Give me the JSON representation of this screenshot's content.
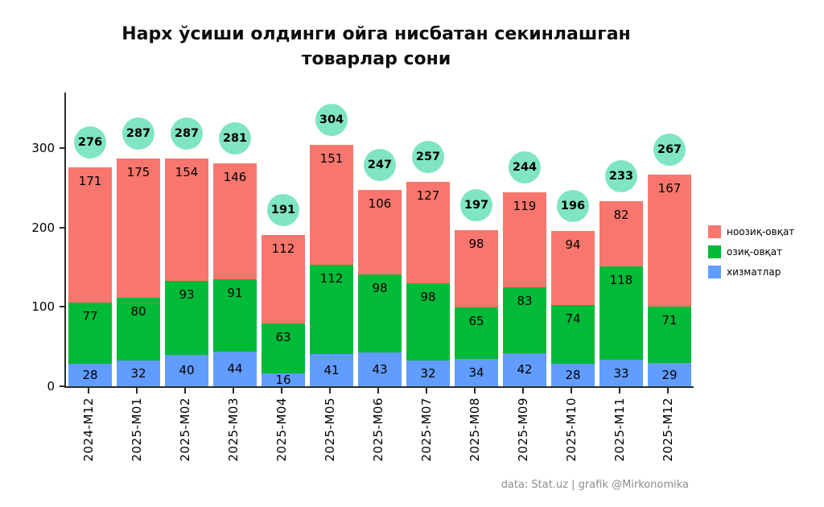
{
  "title": {
    "line1": "Нарх ўсиши олдинги ойга нисбатан секинлашган",
    "line2": "товарлар сони"
  },
  "footer": {
    "credit": "data: Stat.uz | grafik @Mirkonomika"
  },
  "colors": {
    "total_badge": "#7FE5C5",
    "background": "#FFFFFF"
  },
  "chart_data": {
    "type": "bar",
    "stacked": true,
    "title": "Нарх ўсиши олдинги ойга нисбатан секинлашган товарлар сони",
    "xlabel": "",
    "ylabel": "",
    "legend_position": "right",
    "grid": false,
    "yticks": [
      0,
      100,
      200,
      300
    ],
    "ylim": [
      0,
      370
    ],
    "categories": [
      "2024-M12",
      "2025-M01",
      "2025-M02",
      "2025-M03",
      "2025-M04",
      "2025-M05",
      "2025-M06",
      "2025-M07",
      "2025-M08",
      "2025-M09",
      "2025-M10",
      "2025-M11",
      "2025-M12"
    ],
    "series": [
      {
        "key": "nonfood",
        "name": "ноозиқ-овқат",
        "color": "#F8766D",
        "values": [
          171,
          175,
          154,
          146,
          112,
          151,
          106,
          127,
          98,
          119,
          94,
          82,
          167
        ]
      },
      {
        "key": "food",
        "name": "озиқ-овқат",
        "color": "#00BA38",
        "values": [
          77,
          80,
          93,
          91,
          63,
          112,
          98,
          98,
          65,
          83,
          74,
          118,
          71
        ]
      },
      {
        "key": "services",
        "name": "хизматлар",
        "color": "#619CFF",
        "values": [
          28,
          32,
          40,
          44,
          16,
          41,
          43,
          32,
          34,
          42,
          28,
          33,
          29
        ]
      }
    ],
    "totals": [
      276,
      287,
      287,
      281,
      191,
      304,
      247,
      257,
      197,
      244,
      196,
      233,
      267
    ]
  }
}
